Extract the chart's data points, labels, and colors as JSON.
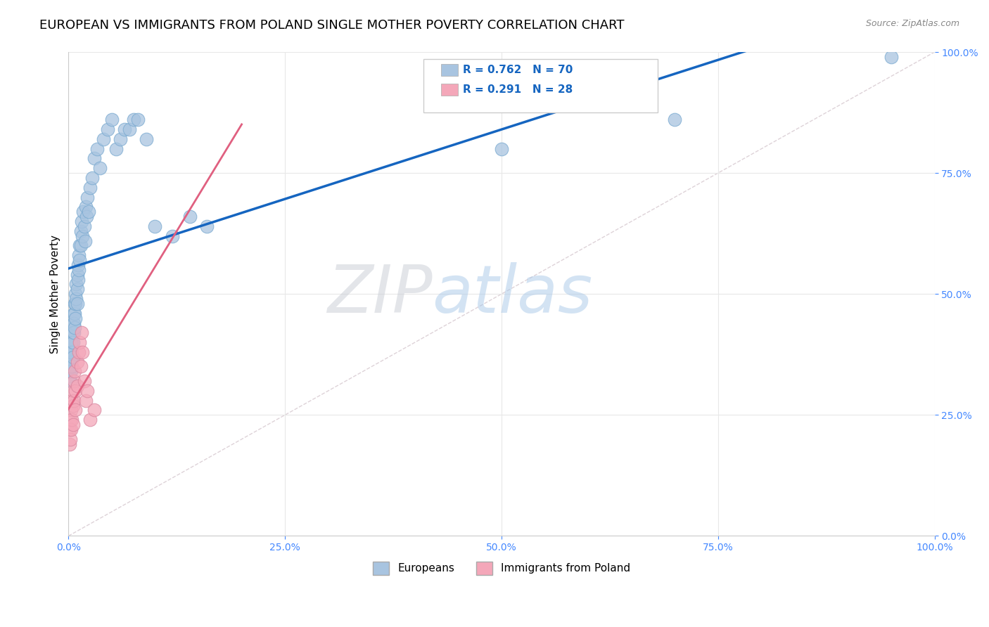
{
  "title": "EUROPEAN VS IMMIGRANTS FROM POLAND SINGLE MOTHER POVERTY CORRELATION CHART",
  "source": "Source: ZipAtlas.com",
  "ylabel": "Single Mother Poverty",
  "blue_R": 0.762,
  "blue_N": 70,
  "pink_R": 0.291,
  "pink_N": 28,
  "blue_color": "#a8c4e0",
  "pink_color": "#f4a7b9",
  "blue_line_color": "#1565c0",
  "pink_line_color": "#e06080",
  "diagonal_color": "#d0c0c8",
  "watermark_zip": "ZIP",
  "watermark_atlas": "atlas",
  "blue_points_x": [
    0.001,
    0.001,
    0.002,
    0.002,
    0.002,
    0.003,
    0.003,
    0.003,
    0.003,
    0.004,
    0.004,
    0.004,
    0.004,
    0.005,
    0.005,
    0.005,
    0.005,
    0.006,
    0.006,
    0.006,
    0.007,
    0.007,
    0.007,
    0.008,
    0.008,
    0.008,
    0.009,
    0.009,
    0.01,
    0.01,
    0.01,
    0.011,
    0.011,
    0.012,
    0.012,
    0.013,
    0.013,
    0.014,
    0.014,
    0.015,
    0.016,
    0.017,
    0.018,
    0.019,
    0.02,
    0.021,
    0.022,
    0.023,
    0.025,
    0.027,
    0.03,
    0.033,
    0.036,
    0.04,
    0.045,
    0.05,
    0.055,
    0.06,
    0.065,
    0.07,
    0.075,
    0.08,
    0.09,
    0.1,
    0.12,
    0.14,
    0.16,
    0.5,
    0.7,
    0.95
  ],
  "blue_points_y": [
    0.35,
    0.33,
    0.37,
    0.34,
    0.32,
    0.4,
    0.38,
    0.36,
    0.34,
    0.42,
    0.4,
    0.38,
    0.35,
    0.44,
    0.42,
    0.4,
    0.37,
    0.46,
    0.44,
    0.42,
    0.48,
    0.46,
    0.43,
    0.5,
    0.48,
    0.45,
    0.52,
    0.49,
    0.54,
    0.51,
    0.48,
    0.56,
    0.53,
    0.58,
    0.55,
    0.6,
    0.57,
    0.63,
    0.6,
    0.65,
    0.62,
    0.67,
    0.64,
    0.61,
    0.68,
    0.66,
    0.7,
    0.67,
    0.72,
    0.74,
    0.78,
    0.8,
    0.76,
    0.82,
    0.84,
    0.86,
    0.8,
    0.82,
    0.84,
    0.84,
    0.86,
    0.86,
    0.82,
    0.64,
    0.62,
    0.66,
    0.64,
    0.8,
    0.86,
    0.99
  ],
  "pink_points_x": [
    0.001,
    0.001,
    0.002,
    0.002,
    0.003,
    0.003,
    0.004,
    0.004,
    0.005,
    0.005,
    0.005,
    0.006,
    0.006,
    0.007,
    0.008,
    0.008,
    0.01,
    0.01,
    0.012,
    0.013,
    0.014,
    0.015,
    0.016,
    0.018,
    0.02,
    0.022,
    0.025,
    0.03
  ],
  "pink_points_y": [
    0.22,
    0.19,
    0.24,
    0.2,
    0.26,
    0.22,
    0.28,
    0.24,
    0.3,
    0.27,
    0.23,
    0.32,
    0.28,
    0.34,
    0.3,
    0.26,
    0.36,
    0.31,
    0.38,
    0.4,
    0.35,
    0.42,
    0.38,
    0.32,
    0.28,
    0.3,
    0.24,
    0.26
  ],
  "xlim": [
    0.0,
    1.0
  ],
  "ylim": [
    0.0,
    1.0
  ],
  "xticks": [
    0.0,
    0.25,
    0.5,
    0.75,
    1.0
  ],
  "yticks": [
    0.0,
    0.25,
    0.5,
    0.75,
    1.0
  ],
  "grid_color": "#e8e8e8",
  "title_fontsize": 13,
  "axis_label_fontsize": 10,
  "tick_color": "#4488ff"
}
